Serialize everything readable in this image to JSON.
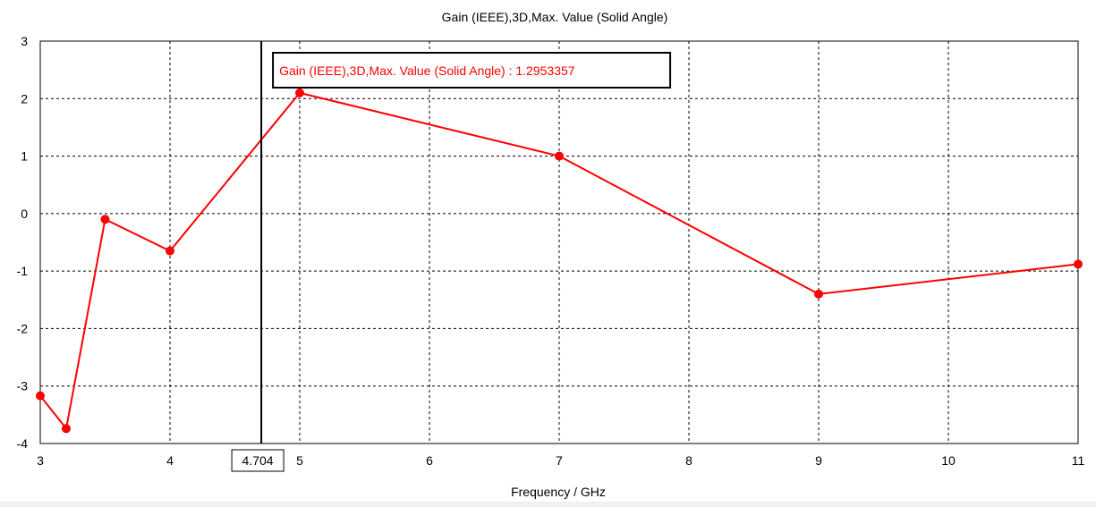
{
  "chart_data": {
    "type": "line",
    "title": "Gain (IEEE),3D,Max. Value (Solid Angle)",
    "xlabel": "Frequency / GHz",
    "ylabel": "",
    "xlim": [
      3,
      11
    ],
    "ylim": [
      -4,
      3
    ],
    "x_ticks": [
      3,
      4,
      5,
      6,
      7,
      8,
      9,
      10,
      11
    ],
    "y_ticks": [
      3,
      2,
      1,
      0,
      -1,
      -2,
      -3,
      -4
    ],
    "grid": true,
    "series": [
      {
        "color": "#ff0000",
        "x": [
          3.0,
          3.2,
          3.5,
          4.0,
          5.0,
          7.0,
          9.0,
          11.0
        ],
        "y": [
          -3.17,
          -3.74,
          -0.1,
          -0.65,
          2.1,
          1.0,
          -1.4,
          -0.88
        ]
      }
    ],
    "marker": {
      "x": 4.704,
      "x_label": "4.704",
      "annotation": "Gain (IEEE),3D,Max. Value (Solid Angle) : 1.2953357"
    }
  }
}
